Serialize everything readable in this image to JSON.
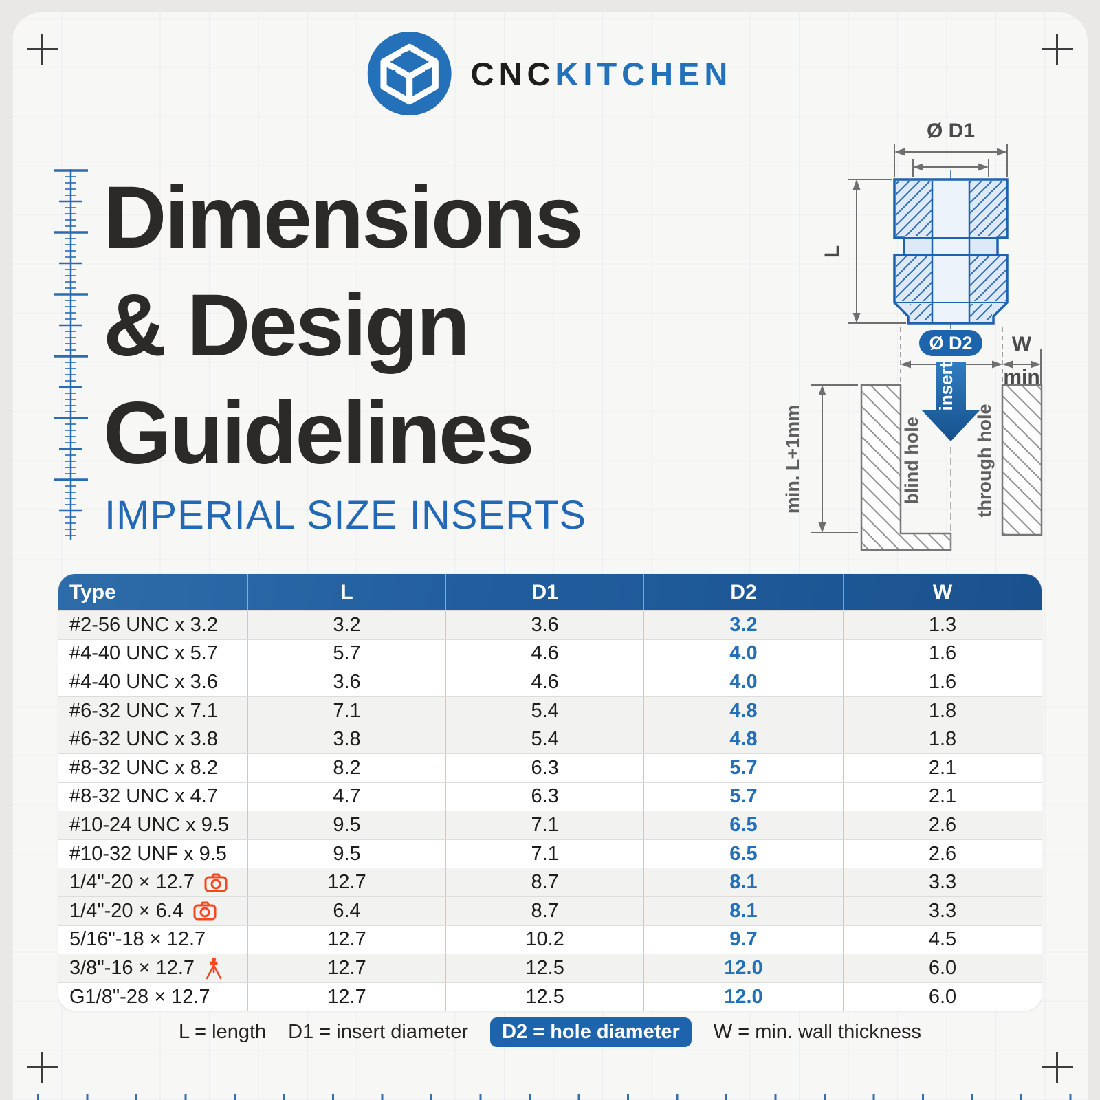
{
  "brand": {
    "cnc": "CNC",
    "kitchen": "KITCHEN"
  },
  "title": {
    "line1": "Dimensions",
    "line2": "& Design",
    "line3": "Guidelines"
  },
  "subtitle": "IMPERIAL SIZE INSERTS",
  "diagram": {
    "d1_label": "Ø D1",
    "l_label": "L",
    "d2_label": "Ø D2",
    "w_label": "W",
    "min_label": "min",
    "insert_label": "insert",
    "blind_hole_label": "blind hole",
    "through_hole_label": "through hole",
    "min_depth_label": "min. L+1mm"
  },
  "table": {
    "headers": [
      "Type",
      "L",
      "D1",
      "D2",
      "W"
    ],
    "rows": [
      {
        "type": "#2-56 UNC x 3.2",
        "l": "3.2",
        "d1": "3.6",
        "d2": "3.2",
        "w": "1.3",
        "group": 1,
        "icon": null
      },
      {
        "type": "#4-40 UNC x 5.7",
        "l": "5.7",
        "d1": "4.6",
        "d2": "4.0",
        "w": "1.6",
        "group": 2,
        "icon": null
      },
      {
        "type": "#4-40 UNC x 3.6",
        "l": "3.6",
        "d1": "4.6",
        "d2": "4.0",
        "w": "1.6",
        "group": 2,
        "icon": null
      },
      {
        "type": "#6-32 UNC x 7.1",
        "l": "7.1",
        "d1": "5.4",
        "d2": "4.8",
        "w": "1.8",
        "group": 3,
        "icon": null
      },
      {
        "type": "#6-32 UNC x 3.8",
        "l": "3.8",
        "d1": "5.4",
        "d2": "4.8",
        "w": "1.8",
        "group": 3,
        "icon": null
      },
      {
        "type": "#8-32 UNC x 8.2",
        "l": "8.2",
        "d1": "6.3",
        "d2": "5.7",
        "w": "2.1",
        "group": 4,
        "icon": null
      },
      {
        "type": "#8-32 UNC x 4.7",
        "l": "4.7",
        "d1": "6.3",
        "d2": "5.7",
        "w": "2.1",
        "group": 4,
        "icon": null
      },
      {
        "type": "#10-24 UNC x 9.5",
        "l": "9.5",
        "d1": "7.1",
        "d2": "6.5",
        "w": "2.6",
        "group": 5,
        "icon": null
      },
      {
        "type": "#10-32 UNF x 9.5",
        "l": "9.5",
        "d1": "7.1",
        "d2": "6.5",
        "w": "2.6",
        "group": 6,
        "icon": null
      },
      {
        "type": "1/4\"-20 × 12.7",
        "l": "12.7",
        "d1": "8.7",
        "d2": "8.1",
        "w": "3.3",
        "group": 7,
        "icon": "camera"
      },
      {
        "type": "1/4\"-20 × 6.4",
        "l": "6.4",
        "d1": "8.7",
        "d2": "8.1",
        "w": "3.3",
        "group": 7,
        "icon": "camera"
      },
      {
        "type": "5/16\"-18 × 12.7",
        "l": "12.7",
        "d1": "10.2",
        "d2": "9.7",
        "w": "4.5",
        "group": 8,
        "icon": null
      },
      {
        "type": "3/8\"-16 × 12.7",
        "l": "12.7",
        "d1": "12.5",
        "d2": "12.0",
        "w": "6.0",
        "group": 9,
        "icon": "tripod"
      },
      {
        "type": "G1/8\"-28 × 12.7",
        "l": "12.7",
        "d1": "12.5",
        "d2": "12.0",
        "w": "6.0",
        "group": 10,
        "icon": null
      }
    ]
  },
  "legend": {
    "l": "L = length",
    "d1": "D1 = insert diameter",
    "d2": "D2 = hole diameter",
    "w": "W = min. wall thickness"
  },
  "colors": {
    "accent_blue": "#2471b9",
    "table_header_blue": "#1f5a97",
    "d2_pill_blue": "#1d64ad",
    "icon_orange": "#f4481f",
    "title_dark": "#2b2a29"
  }
}
